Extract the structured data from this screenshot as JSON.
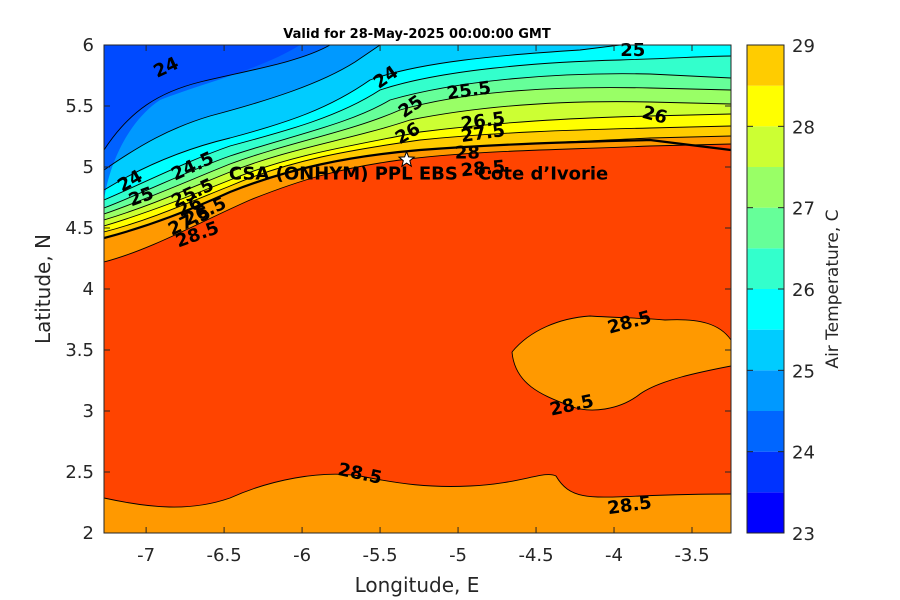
{
  "chart_data": {
    "type": "contour",
    "title": "Valid for 28-May-2025 00:00:00 GMT",
    "xlabel": "Longitude, E",
    "ylabel": "Latitude, N",
    "xlim": [
      -7.27,
      -3.25
    ],
    "ylim": [
      2,
      6
    ],
    "x_ticks": [
      -7,
      -6.5,
      -6,
      -5.5,
      -5,
      -4.5,
      -4,
      -3.5
    ],
    "y_ticks": [
      2,
      2.5,
      3,
      3.5,
      4,
      4.5,
      5,
      5.5,
      6
    ],
    "x_tick_labels": [
      "-7",
      "-6.5",
      "-6",
      "-5.5",
      "-5",
      "-4.5",
      "-4",
      "-3.5"
    ],
    "y_tick_labels": [
      "2",
      "2.5",
      "3",
      "3.5",
      "4",
      "4.5",
      "5",
      "5.5",
      "6"
    ],
    "colorbar": {
      "label": "Air Temperature, C",
      "range": [
        23,
        29
      ],
      "step": 0.5,
      "ticks": [
        23,
        24,
        25,
        26,
        27,
        28,
        29
      ],
      "tick_labels": [
        "23",
        "24",
        "25",
        "26",
        "27",
        "28",
        "29"
      ],
      "colors": [
        "#0000ff",
        "#0033ff",
        "#0066ff",
        "#0099ff",
        "#00ccff",
        "#00ffff",
        "#33ffcc",
        "#66ff99",
        "#99ff66",
        "#ccff33",
        "#ffff00",
        "#ffcc00",
        "#ff9900",
        "#ff4400"
      ]
    },
    "site": {
      "label": "CSA (ONHYM) PPL EBS - Cote d’Ivorie",
      "lon": -5.33,
      "lat": 5.06,
      "marker": "star"
    },
    "contour_labels": [
      {
        "text": "24",
        "lon": -6.87,
        "lat": 5.81,
        "rot": -25
      },
      {
        "text": "24",
        "lon": -5.46,
        "lat": 5.73,
        "rot": -35
      },
      {
        "text": "25",
        "lon": -3.88,
        "lat": 5.95,
        "rot": 0
      },
      {
        "text": "25",
        "lon": -5.3,
        "lat": 5.49,
        "rot": -35
      },
      {
        "text": "25.5",
        "lon": -4.93,
        "lat": 5.62,
        "rot": -8
      },
      {
        "text": "26",
        "lon": -5.32,
        "lat": 5.27,
        "rot": -30
      },
      {
        "text": "26",
        "lon": -3.74,
        "lat": 5.42,
        "rot": 15
      },
      {
        "text": "26.5",
        "lon": -4.84,
        "lat": 5.37,
        "rot": -8
      },
      {
        "text": "27.5",
        "lon": -4.84,
        "lat": 5.27,
        "rot": -8
      },
      {
        "text": "28",
        "lon": -4.94,
        "lat": 5.11,
        "rot": 0
      },
      {
        "text": "28.5",
        "lon": -4.84,
        "lat": 4.98,
        "rot": -5
      },
      {
        "text": "24.5",
        "lon": -6.7,
        "lat": 5.0,
        "rot": -25
      },
      {
        "text": "24",
        "lon": -7.1,
        "lat": 4.88,
        "rot": -30
      },
      {
        "text": "25",
        "lon": -7.03,
        "lat": 4.75,
        "rot": -20
      },
      {
        "text": "25.5",
        "lon": -6.7,
        "lat": 4.78,
        "rot": -25
      },
      {
        "text": "26",
        "lon": -6.72,
        "lat": 4.67,
        "rot": -25
      },
      {
        "text": "26.5",
        "lon": -6.62,
        "lat": 4.63,
        "rot": -25
      },
      {
        "text": "27.5",
        "lon": -6.72,
        "lat": 4.55,
        "rot": -25
      },
      {
        "text": "28.5",
        "lon": -6.67,
        "lat": 4.44,
        "rot": -20
      },
      {
        "text": "28.5",
        "lon": -3.9,
        "lat": 3.72,
        "rot": -15
      },
      {
        "text": "28.5",
        "lon": -4.27,
        "lat": 3.04,
        "rot": -12
      },
      {
        "text": "28.5",
        "lon": -5.63,
        "lat": 2.48,
        "rot": 12
      },
      {
        "text": "28.5",
        "lon": -3.9,
        "lat": 2.22,
        "rot": -8
      }
    ]
  }
}
